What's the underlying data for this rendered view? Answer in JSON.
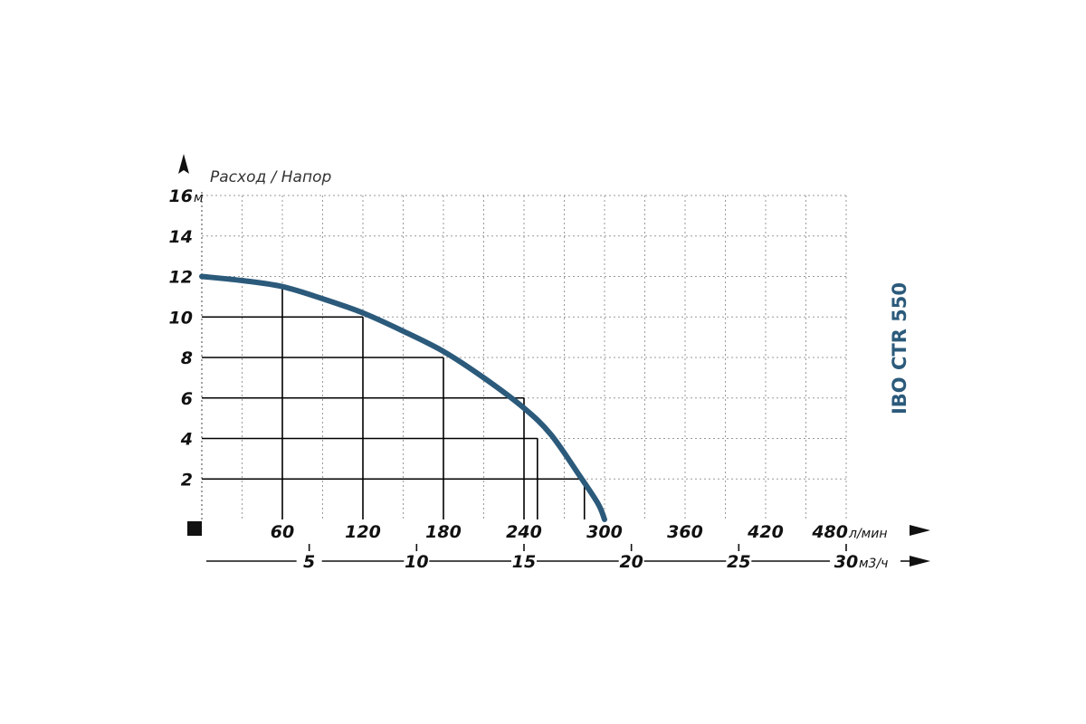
{
  "chart_data": {
    "type": "line",
    "title": "Расход / Напор",
    "model_label": "IBO CTR 550",
    "y_unit": "м",
    "y_ticks": [
      "2",
      "4",
      "6",
      "8",
      "10",
      "12",
      "14",
      "16"
    ],
    "ylim": [
      0,
      16
    ],
    "x_primary": {
      "unit": "л/мин",
      "ticks": [
        "60",
        "120",
        "180",
        "240",
        "300",
        "360",
        "420",
        "480"
      ],
      "range": [
        0,
        480
      ]
    },
    "x_secondary": {
      "unit": "м3/ч",
      "ticks": [
        "5",
        "10",
        "15",
        "20",
        "25",
        "30"
      ],
      "range": [
        0,
        30
      ]
    },
    "grid": true,
    "series": [
      {
        "x": [
          0,
          30,
          60,
          90,
          120,
          150,
          180,
          210,
          240,
          260,
          280,
          295,
          300
        ],
        "y": [
          12,
          11.8,
          11.5,
          10.9,
          10.2,
          9.3,
          8.3,
          7.0,
          5.5,
          4.2,
          2.3,
          0.8,
          0
        ]
      }
    ],
    "guides": [
      {
        "x": 60,
        "y": 11.5
      },
      {
        "x": 120,
        "y": 10
      },
      {
        "x": 180,
        "y": 8
      },
      {
        "x": 240,
        "y": 6
      },
      {
        "x": 250,
        "y": 4
      },
      {
        "x": 285,
        "y": 2
      }
    ],
    "colors": {
      "curve": "#2b5a7b",
      "guide": "#000000",
      "grid": "#9a9a9a",
      "model_label": "#2b5a7b"
    }
  }
}
